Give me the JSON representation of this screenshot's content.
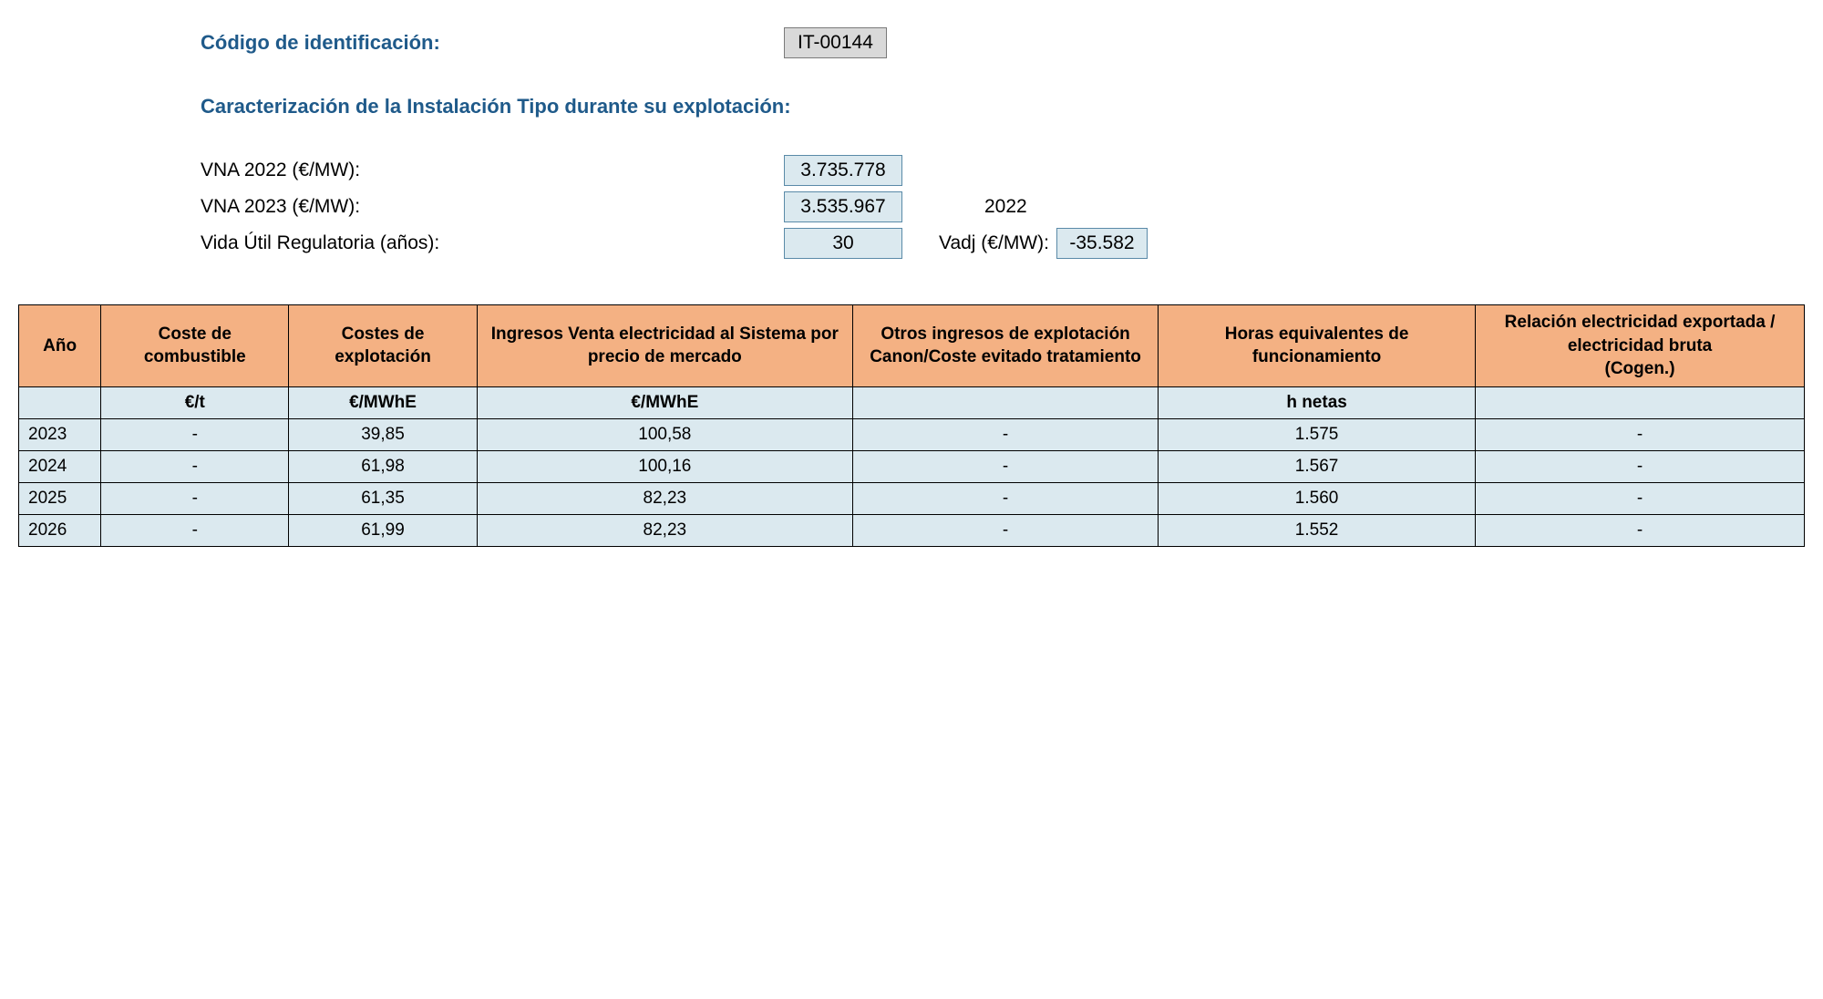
{
  "header": {
    "code_label": "Código de identificación:",
    "code_value": "IT-00144",
    "characterization_label": "Caracterización de la Instalación Tipo durante su explotación:",
    "vna_2022_label": "VNA 2022 (€/MW):",
    "vna_2022_value": "3.735.778",
    "vna_2023_label": "VNA 2023 (€/MW):",
    "vna_2023_value": "3.535.967",
    "vida_label": "Vida Útil Regulatoria (años):",
    "vida_value": "30",
    "ref_year": "2022",
    "vadj_label": "Vadj (€/MW):",
    "vadj_value": "-35.582"
  },
  "table": {
    "columns": [
      "Año",
      "Coste de combustible",
      "Costes de explotación",
      "Ingresos Venta electricidad al Sistema por precio de mercado",
      "Otros ingresos de explotación Canon/Coste evitado tratamiento",
      "Horas equivalentes de funcionamiento",
      "Relación electricidad exportada / electricidad bruta\n(Cogen.)"
    ],
    "units": [
      "",
      "€/t",
      "€/MWhE",
      "€/MWhE",
      "",
      "h netas",
      ""
    ],
    "rows": [
      [
        "2023",
        "-",
        "39,85",
        "100,58",
        "-",
        "1.575",
        "-"
      ],
      [
        "2024",
        "-",
        "61,98",
        "100,16",
        "-",
        "1.567",
        "-"
      ],
      [
        "2025",
        "-",
        "61,35",
        "82,23",
        "-",
        "1.560",
        "-"
      ],
      [
        "2026",
        "-",
        "61,99",
        "82,23",
        "-",
        "1.552",
        "-"
      ]
    ],
    "header_bg": "#f4b183",
    "cell_bg": "#dbe9ef",
    "border_color": "#000000"
  }
}
